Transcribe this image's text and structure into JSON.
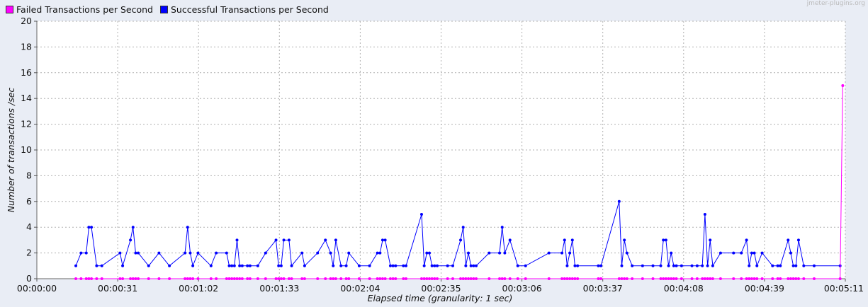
{
  "legend": [
    {
      "label": "Failed Transactions per Second",
      "color": "#ff00ff"
    },
    {
      "label": "Successful Transactions per Second",
      "color": "#0000ff"
    }
  ],
  "watermark": "jmeter-plugins.org",
  "chart_data": {
    "type": "line",
    "ylabel": "Number of transactions /sec",
    "xlabel": "Elapsed time (granularity: 1 sec)",
    "ylim": [
      0,
      20
    ],
    "xlim_seconds": [
      0,
      311
    ],
    "x_ticks": [
      "00:00:00",
      "00:00:31",
      "00:01:02",
      "00:01:33",
      "00:02:04",
      "00:02:35",
      "00:03:06",
      "00:03:37",
      "00:04:08",
      "00:04:39",
      "00:05:11"
    ],
    "y_ticks": [
      0,
      2,
      4,
      6,
      8,
      10,
      12,
      14,
      16,
      18,
      20
    ],
    "grid": true,
    "legend_position": "top-left",
    "series": [
      {
        "name": "Successful Transactions per Second",
        "color": "#0000ff",
        "points": [
          [
            15,
            1
          ],
          [
            17,
            2
          ],
          [
            19,
            2
          ],
          [
            20,
            4
          ],
          [
            21,
            4
          ],
          [
            23,
            1
          ],
          [
            25,
            1
          ],
          [
            32,
            2
          ],
          [
            33,
            1
          ],
          [
            36,
            3
          ],
          [
            37,
            4
          ],
          [
            38,
            2
          ],
          [
            39,
            2
          ],
          [
            43,
            1
          ],
          [
            47,
            2
          ],
          [
            51,
            1
          ],
          [
            57,
            2
          ],
          [
            58,
            4
          ],
          [
            59,
            2
          ],
          [
            60,
            1
          ],
          [
            62,
            2
          ],
          [
            67,
            1
          ],
          [
            69,
            2
          ],
          [
            73,
            2
          ],
          [
            74,
            1
          ],
          [
            75,
            1
          ],
          [
            76,
            1
          ],
          [
            77,
            3
          ],
          [
            78,
            1
          ],
          [
            79,
            1
          ],
          [
            81,
            1
          ],
          [
            82,
            1
          ],
          [
            85,
            1
          ],
          [
            88,
            2
          ],
          [
            92,
            3
          ],
          [
            93,
            1
          ],
          [
            94,
            1
          ],
          [
            95,
            3
          ],
          [
            97,
            3
          ],
          [
            98,
            1
          ],
          [
            102,
            2
          ],
          [
            103,
            1
          ],
          [
            108,
            2
          ],
          [
            111,
            3
          ],
          [
            113,
            2
          ],
          [
            114,
            1
          ],
          [
            115,
            3
          ],
          [
            117,
            1
          ],
          [
            119,
            1
          ],
          [
            120,
            2
          ],
          [
            124,
            1
          ],
          [
            128,
            1
          ],
          [
            131,
            2
          ],
          [
            132,
            2
          ],
          [
            133,
            3
          ],
          [
            134,
            3
          ],
          [
            136,
            1
          ],
          [
            137,
            1
          ],
          [
            138,
            1
          ],
          [
            141,
            1
          ],
          [
            142,
            1
          ],
          [
            148,
            5
          ],
          [
            149,
            1
          ],
          [
            150,
            2
          ],
          [
            151,
            2
          ],
          [
            152,
            1
          ],
          [
            153,
            1
          ],
          [
            154,
            1
          ],
          [
            158,
            1
          ],
          [
            160,
            1
          ],
          [
            163,
            3
          ],
          [
            164,
            4
          ],
          [
            165,
            1
          ],
          [
            166,
            2
          ],
          [
            167,
            1
          ],
          [
            168,
            1
          ],
          [
            169,
            1
          ],
          [
            174,
            2
          ],
          [
            178,
            2
          ],
          [
            179,
            4
          ],
          [
            180,
            2
          ],
          [
            182,
            3
          ],
          [
            185,
            1
          ],
          [
            188,
            1
          ],
          [
            197,
            2
          ],
          [
            202,
            2
          ],
          [
            203,
            3
          ],
          [
            204,
            1
          ],
          [
            205,
            2
          ],
          [
            206,
            3
          ],
          [
            207,
            1
          ],
          [
            208,
            1
          ],
          [
            216,
            1
          ],
          [
            217,
            1
          ],
          [
            224,
            6
          ],
          [
            225,
            1
          ],
          [
            226,
            3
          ],
          [
            227,
            2
          ],
          [
            229,
            1
          ],
          [
            233,
            1
          ],
          [
            237,
            1
          ],
          [
            240,
            1
          ],
          [
            241,
            3
          ],
          [
            242,
            3
          ],
          [
            243,
            1
          ],
          [
            244,
            2
          ],
          [
            245,
            1
          ],
          [
            246,
            1
          ],
          [
            248,
            1
          ],
          [
            252,
            1
          ],
          [
            254,
            1
          ],
          [
            256,
            1
          ],
          [
            257,
            5
          ],
          [
            258,
            1
          ],
          [
            259,
            3
          ],
          [
            260,
            1
          ],
          [
            263,
            2
          ],
          [
            268,
            2
          ],
          [
            271,
            2
          ],
          [
            273,
            3
          ],
          [
            274,
            1
          ],
          [
            275,
            2
          ],
          [
            276,
            2
          ],
          [
            277,
            1
          ],
          [
            279,
            2
          ],
          [
            283,
            1
          ],
          [
            285,
            1
          ],
          [
            286,
            1
          ],
          [
            289,
            3
          ],
          [
            290,
            2
          ],
          [
            291,
            1
          ],
          [
            292,
            1
          ],
          [
            293,
            3
          ],
          [
            295,
            1
          ],
          [
            299,
            1
          ],
          [
            309,
            1
          ]
        ]
      },
      {
        "name": "Failed Transactions per Second",
        "color": "#ff00ff",
        "points": [
          [
            15,
            0
          ],
          [
            17,
            0
          ],
          [
            19,
            0
          ],
          [
            20,
            0
          ],
          [
            21,
            0
          ],
          [
            23,
            0
          ],
          [
            25,
            0
          ],
          [
            32,
            0
          ],
          [
            33,
            0
          ],
          [
            36,
            0
          ],
          [
            37,
            0
          ],
          [
            38,
            0
          ],
          [
            39,
            0
          ],
          [
            43,
            0
          ],
          [
            47,
            0
          ],
          [
            51,
            0
          ],
          [
            57,
            0
          ],
          [
            58,
            0
          ],
          [
            59,
            0
          ],
          [
            60,
            0
          ],
          [
            62,
            0
          ],
          [
            67,
            0
          ],
          [
            69,
            0
          ],
          [
            73,
            0
          ],
          [
            74,
            0
          ],
          [
            75,
            0
          ],
          [
            76,
            0
          ],
          [
            77,
            0
          ],
          [
            78,
            0
          ],
          [
            79,
            0
          ],
          [
            81,
            0
          ],
          [
            82,
            0
          ],
          [
            85,
            0
          ],
          [
            88,
            0
          ],
          [
            92,
            0
          ],
          [
            93,
            0
          ],
          [
            94,
            0
          ],
          [
            95,
            0
          ],
          [
            97,
            0
          ],
          [
            98,
            0
          ],
          [
            102,
            0
          ],
          [
            103,
            0
          ],
          [
            108,
            0
          ],
          [
            111,
            0
          ],
          [
            113,
            0
          ],
          [
            114,
            0
          ],
          [
            115,
            0
          ],
          [
            117,
            0
          ],
          [
            119,
            0
          ],
          [
            120,
            0
          ],
          [
            124,
            0
          ],
          [
            128,
            0
          ],
          [
            131,
            0
          ],
          [
            132,
            0
          ],
          [
            133,
            0
          ],
          [
            134,
            0
          ],
          [
            136,
            0
          ],
          [
            137,
            0
          ],
          [
            138,
            0
          ],
          [
            141,
            0
          ],
          [
            142,
            0
          ],
          [
            148,
            0
          ],
          [
            149,
            0
          ],
          [
            150,
            0
          ],
          [
            151,
            0
          ],
          [
            152,
            0
          ],
          [
            153,
            0
          ],
          [
            154,
            0
          ],
          [
            158,
            0
          ],
          [
            160,
            0
          ],
          [
            163,
            0
          ],
          [
            164,
            0
          ],
          [
            165,
            0
          ],
          [
            166,
            0
          ],
          [
            167,
            0
          ],
          [
            168,
            0
          ],
          [
            169,
            0
          ],
          [
            174,
            0
          ],
          [
            178,
            0
          ],
          [
            179,
            0
          ],
          [
            180,
            0
          ],
          [
            182,
            0
          ],
          [
            185,
            0
          ],
          [
            188,
            0
          ],
          [
            197,
            0
          ],
          [
            202,
            0
          ],
          [
            203,
            0
          ],
          [
            204,
            0
          ],
          [
            205,
            0
          ],
          [
            206,
            0
          ],
          [
            207,
            0
          ],
          [
            208,
            0
          ],
          [
            216,
            0
          ],
          [
            217,
            0
          ],
          [
            224,
            0
          ],
          [
            225,
            0
          ],
          [
            226,
            0
          ],
          [
            227,
            0
          ],
          [
            229,
            0
          ],
          [
            233,
            0
          ],
          [
            237,
            0
          ],
          [
            240,
            0
          ],
          [
            241,
            0
          ],
          [
            242,
            0
          ],
          [
            243,
            0
          ],
          [
            244,
            0
          ],
          [
            245,
            0
          ],
          [
            246,
            0
          ],
          [
            248,
            0
          ],
          [
            252,
            0
          ],
          [
            254,
            0
          ],
          [
            256,
            0
          ],
          [
            257,
            0
          ],
          [
            258,
            0
          ],
          [
            259,
            0
          ],
          [
            260,
            0
          ],
          [
            263,
            0
          ],
          [
            268,
            0
          ],
          [
            271,
            0
          ],
          [
            273,
            0
          ],
          [
            274,
            0
          ],
          [
            275,
            0
          ],
          [
            276,
            0
          ],
          [
            277,
            0
          ],
          [
            279,
            0
          ],
          [
            283,
            0
          ],
          [
            285,
            0
          ],
          [
            286,
            0
          ],
          [
            289,
            0
          ],
          [
            290,
            0
          ],
          [
            291,
            0
          ],
          [
            292,
            0
          ],
          [
            293,
            0
          ],
          [
            295,
            0
          ],
          [
            299,
            0
          ],
          [
            309,
            0
          ],
          [
            310,
            15
          ]
        ]
      }
    ]
  }
}
